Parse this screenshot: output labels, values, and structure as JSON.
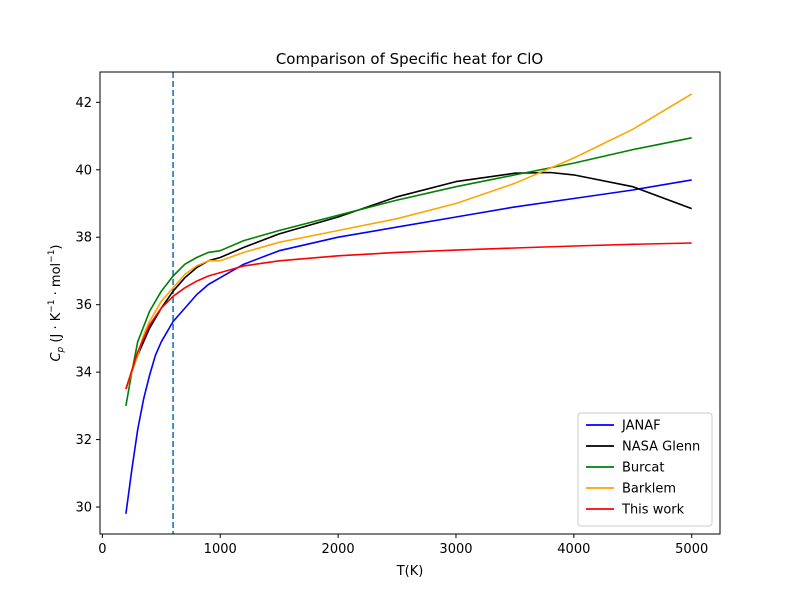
{
  "chart_data": {
    "type": "line",
    "title": "Comparison of Specific heat for ClO",
    "xlabel": "T(K)",
    "ylabel": {
      "symbol": "C",
      "subscript": "p",
      "unit_prefix": " (J · K",
      "unit_exp1": "−1",
      "unit_mid": " · mol",
      "unit_exp2": "−1",
      "unit_suffix": ")"
    },
    "xlim": [
      -20,
      5240
    ],
    "ylim": [
      29.2,
      42.9
    ],
    "xticks": [
      0,
      1000,
      2000,
      3000,
      4000,
      5000
    ],
    "xtick_labels": [
      "0",
      "1000",
      "2000",
      "3000",
      "4000",
      "5000"
    ],
    "yticks": [
      30,
      32,
      34,
      36,
      38,
      40,
      42
    ],
    "ytick_labels": [
      "30",
      "32",
      "34",
      "36",
      "38",
      "40",
      "42"
    ],
    "grid": false,
    "legend_position": "lower right",
    "vline": {
      "x": 600,
      "color": "#1f77b4",
      "style": "dashed"
    },
    "series": [
      {
        "name": "JANAF",
        "color": "#0000ff",
        "x": [
          200,
          250,
          300,
          350,
          400,
          450,
          500,
          600,
          700,
          800,
          900,
          1000,
          1200,
          1500,
          2000,
          2500,
          3000,
          3500,
          4000,
          4500,
          5000
        ],
        "y": [
          29.8,
          31.1,
          32.3,
          33.2,
          33.9,
          34.5,
          34.9,
          35.5,
          35.9,
          36.3,
          36.6,
          36.8,
          37.2,
          37.6,
          38.0,
          38.3,
          38.6,
          38.9,
          39.15,
          39.4,
          39.7
        ]
      },
      {
        "name": "NASA Glenn",
        "color": "#000000",
        "x": [
          200,
          300,
          400,
          500,
          600,
          700,
          800,
          900,
          1000,
          1200,
          1500,
          2000,
          2500,
          3000,
          3500,
          3800,
          4000,
          4500,
          5000
        ],
        "y": [
          33.5,
          34.5,
          35.3,
          35.9,
          36.4,
          36.8,
          37.1,
          37.3,
          37.4,
          37.7,
          38.1,
          38.6,
          39.2,
          39.65,
          39.9,
          39.92,
          39.85,
          39.5,
          38.85
        ]
      },
      {
        "name": "Burcat",
        "color": "#008000",
        "x": [
          200,
          250,
          300,
          400,
          500,
          600,
          700,
          800,
          900,
          1000,
          1200,
          1500,
          2000,
          2500,
          3000,
          3500,
          4000,
          4500,
          5000
        ],
        "y": [
          33.0,
          34.0,
          34.9,
          35.8,
          36.4,
          36.85,
          37.2,
          37.4,
          37.55,
          37.6,
          37.9,
          38.2,
          38.65,
          39.1,
          39.5,
          39.85,
          40.2,
          40.6,
          40.95
        ]
      },
      {
        "name": "Barklem",
        "color": "#ffa500",
        "x": [
          200,
          300,
          350,
          400,
          500,
          600,
          700,
          800,
          900,
          1000,
          1200,
          1500,
          2000,
          2500,
          3000,
          3500,
          4000,
          4500,
          5000
        ],
        "y": [
          33.5,
          34.5,
          35.1,
          35.5,
          36.1,
          36.5,
          36.9,
          37.15,
          37.3,
          37.3,
          37.55,
          37.85,
          38.2,
          38.55,
          39.0,
          39.6,
          40.35,
          41.2,
          42.25
        ]
      },
      {
        "name": "This work",
        "color": "#ff0000",
        "x": [
          200,
          300,
          400,
          500,
          600,
          700,
          800,
          900,
          1000,
          1200,
          1500,
          2000,
          2500,
          3000,
          3500,
          4000,
          4500,
          5000
        ],
        "y": [
          33.5,
          34.6,
          35.4,
          35.9,
          36.25,
          36.5,
          36.7,
          36.85,
          36.95,
          37.15,
          37.3,
          37.45,
          37.55,
          37.62,
          37.68,
          37.74,
          37.79,
          37.83
        ]
      }
    ]
  }
}
